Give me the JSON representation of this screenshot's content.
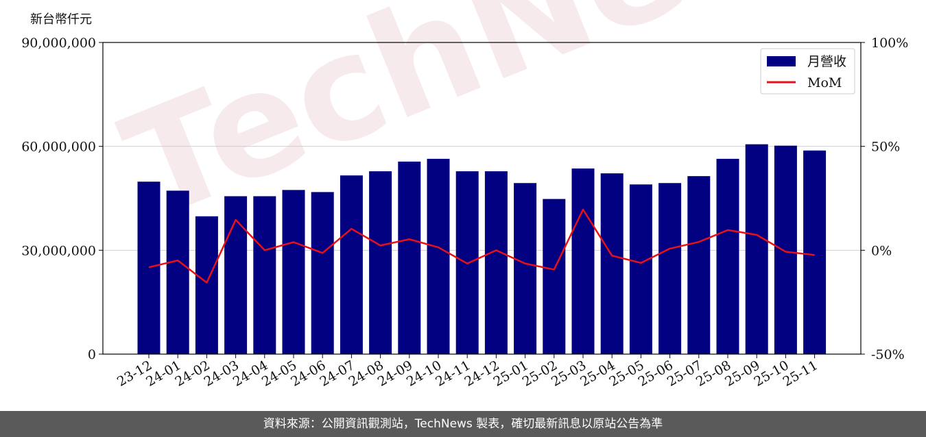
{
  "chart_data": {
    "type": "bar",
    "y_unit_label": "新台幣仟元",
    "categories": [
      "23-12",
      "24-01",
      "24-02",
      "24-03",
      "24-04",
      "24-05",
      "24-06",
      "24-07",
      "24-08",
      "24-09",
      "24-10",
      "24-11",
      "24-12",
      "25-01",
      "25-02",
      "25-03",
      "25-04",
      "25-05",
      "25-06",
      "25-07",
      "25-08",
      "25-09",
      "25-10",
      "25-11"
    ],
    "series": [
      {
        "name": "月營收",
        "axis": "left",
        "kind": "bar",
        "color": "#000080",
        "values": [
          49800000,
          47200000,
          39800000,
          45600000,
          45600000,
          47400000,
          46800000,
          51600000,
          52800000,
          55600000,
          56400000,
          52800000,
          52800000,
          49400000,
          44800000,
          53600000,
          52200000,
          49000000,
          49400000,
          51400000,
          56400000,
          60600000,
          60200000,
          58800000
        ]
      },
      {
        "name": "MoM",
        "axis": "right",
        "kind": "line",
        "color": "#e8101a",
        "values": [
          -8.2,
          -4.9,
          -15.6,
          14.6,
          0.0,
          3.9,
          -1.3,
          10.3,
          2.3,
          5.3,
          1.4,
          -6.4,
          0.0,
          -6.4,
          -9.3,
          19.6,
          -2.6,
          -6.1,
          0.8,
          4.0,
          9.7,
          7.4,
          -0.7,
          -2.3
        ]
      }
    ],
    "left_axis": {
      "min": 0,
      "max": 90000000,
      "ticks": [
        0,
        30000000,
        60000000,
        90000000
      ],
      "tick_labels": [
        "0",
        "30,000,000",
        "60,000,000",
        "90,000,000"
      ]
    },
    "right_axis": {
      "min": -50,
      "max": 100,
      "ticks": [
        -50,
        0,
        50,
        100
      ],
      "tick_labels": [
        "-50%",
        "0%",
        "50%",
        "100%"
      ]
    },
    "grid": "horizontal",
    "legend_position": "top-right"
  },
  "watermark": "TechNews",
  "footer": {
    "text": "資料來源：公開資訊觀測站，TechNews 製表，確切最新訊息以原站公告為準"
  }
}
